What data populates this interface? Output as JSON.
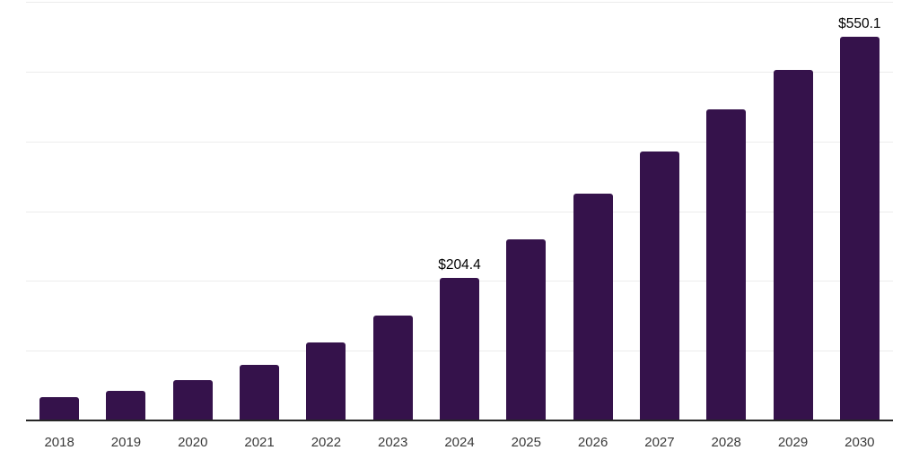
{
  "chart_data": {
    "type": "bar",
    "title": "",
    "xlabel": "",
    "ylabel": "",
    "categories": [
      "2018",
      "2019",
      "2020",
      "2021",
      "2022",
      "2023",
      "2024",
      "2025",
      "2026",
      "2027",
      "2028",
      "2029",
      "2030"
    ],
    "values": [
      33.0,
      41.8,
      57.6,
      79.9,
      111.2,
      150.4,
      204.4,
      259.6,
      324.8,
      385.9,
      446.2,
      502.0,
      550.1
    ],
    "data_labels": {
      "2024": "$204.4",
      "2030": "$550.1"
    },
    "ylim": [
      0,
      600
    ],
    "gridline_step": 100,
    "grid": "horizontal-on",
    "y_tick_labels": "none",
    "legend": "none",
    "colors": {
      "bar": "#35124B",
      "axis_line": "#262626",
      "gridline": "#ececec",
      "x_label": "#3a3a3a",
      "data_label": "#000000",
      "background": "#ffffff"
    }
  }
}
